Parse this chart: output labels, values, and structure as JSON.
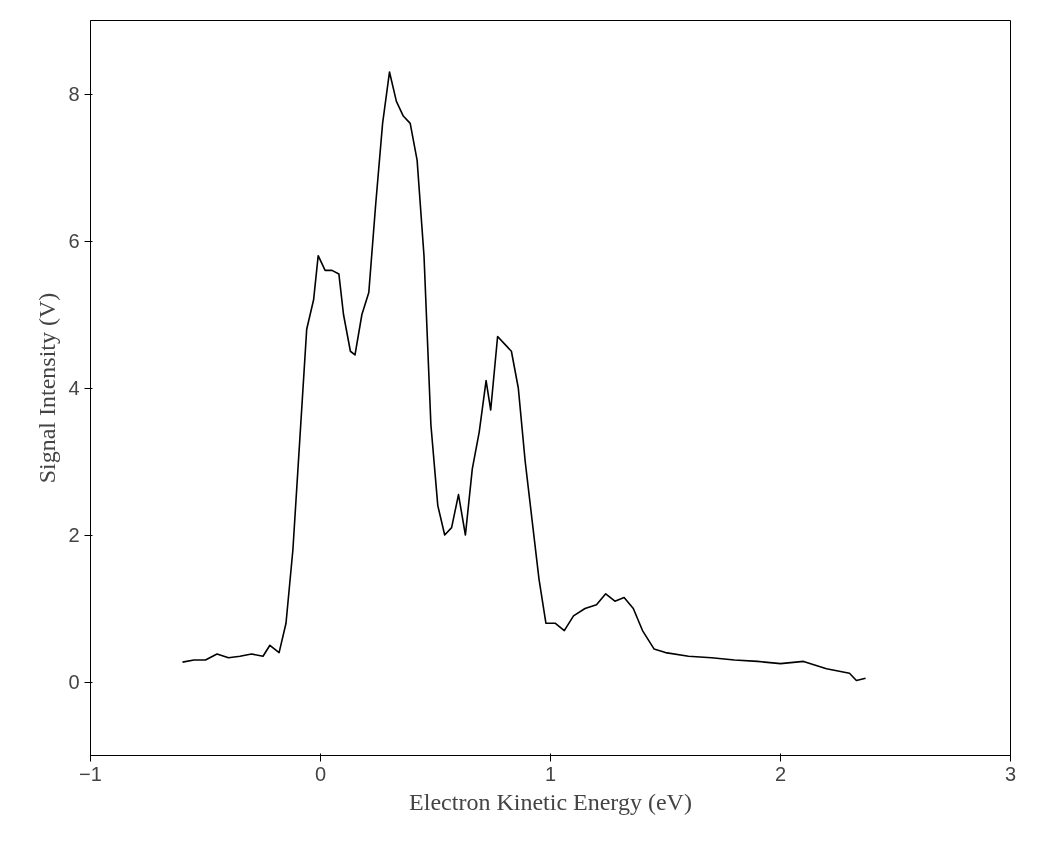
{
  "chart_data": {
    "type": "line",
    "xlabel": "Electron Kinetic Energy (eV)",
    "ylabel": "Signal Intensity (V)",
    "xlim": [
      -1,
      3
    ],
    "ylim": [
      -1,
      9
    ],
    "xticks": [
      -1,
      0,
      1,
      2,
      3
    ],
    "yticks": [
      0,
      2,
      4,
      6,
      8
    ],
    "grid": false,
    "series": [
      {
        "color": "#000000",
        "x": [
          -0.6,
          -0.55,
          -0.5,
          -0.45,
          -0.4,
          -0.35,
          -0.3,
          -0.25,
          -0.22,
          -0.18,
          -0.15,
          -0.12,
          -0.09,
          -0.06,
          -0.03,
          -0.01,
          0.02,
          0.05,
          0.08,
          0.1,
          0.13,
          0.15,
          0.18,
          0.21,
          0.24,
          0.27,
          0.3,
          0.33,
          0.36,
          0.39,
          0.42,
          0.45,
          0.48,
          0.51,
          0.54,
          0.57,
          0.6,
          0.63,
          0.66,
          0.69,
          0.72,
          0.74,
          0.77,
          0.8,
          0.83,
          0.86,
          0.89,
          0.92,
          0.95,
          0.98,
          1.02,
          1.06,
          1.1,
          1.15,
          1.2,
          1.24,
          1.28,
          1.32,
          1.36,
          1.4,
          1.45,
          1.5,
          1.6,
          1.7,
          1.8,
          1.9,
          2.0,
          2.1,
          2.2,
          2.3,
          2.33,
          2.37
        ],
        "values": [
          0.27,
          0.3,
          0.3,
          0.38,
          0.33,
          0.35,
          0.38,
          0.35,
          0.5,
          0.4,
          0.8,
          1.8,
          3.3,
          4.8,
          5.2,
          5.8,
          5.6,
          5.6,
          5.55,
          5.0,
          4.5,
          4.45,
          5.0,
          5.3,
          6.5,
          7.6,
          8.3,
          7.9,
          7.7,
          7.6,
          7.1,
          5.8,
          3.5,
          2.4,
          2.0,
          2.1,
          2.55,
          2.0,
          2.9,
          3.4,
          4.1,
          3.7,
          4.7,
          4.6,
          4.5,
          4.0,
          3.0,
          2.2,
          1.4,
          0.8,
          0.8,
          0.7,
          0.9,
          1.0,
          1.05,
          1.2,
          1.1,
          1.15,
          1.0,
          0.7,
          0.45,
          0.4,
          0.35,
          0.33,
          0.3,
          0.28,
          0.25,
          0.28,
          0.18,
          0.12,
          0.02,
          0.05
        ]
      }
    ]
  }
}
